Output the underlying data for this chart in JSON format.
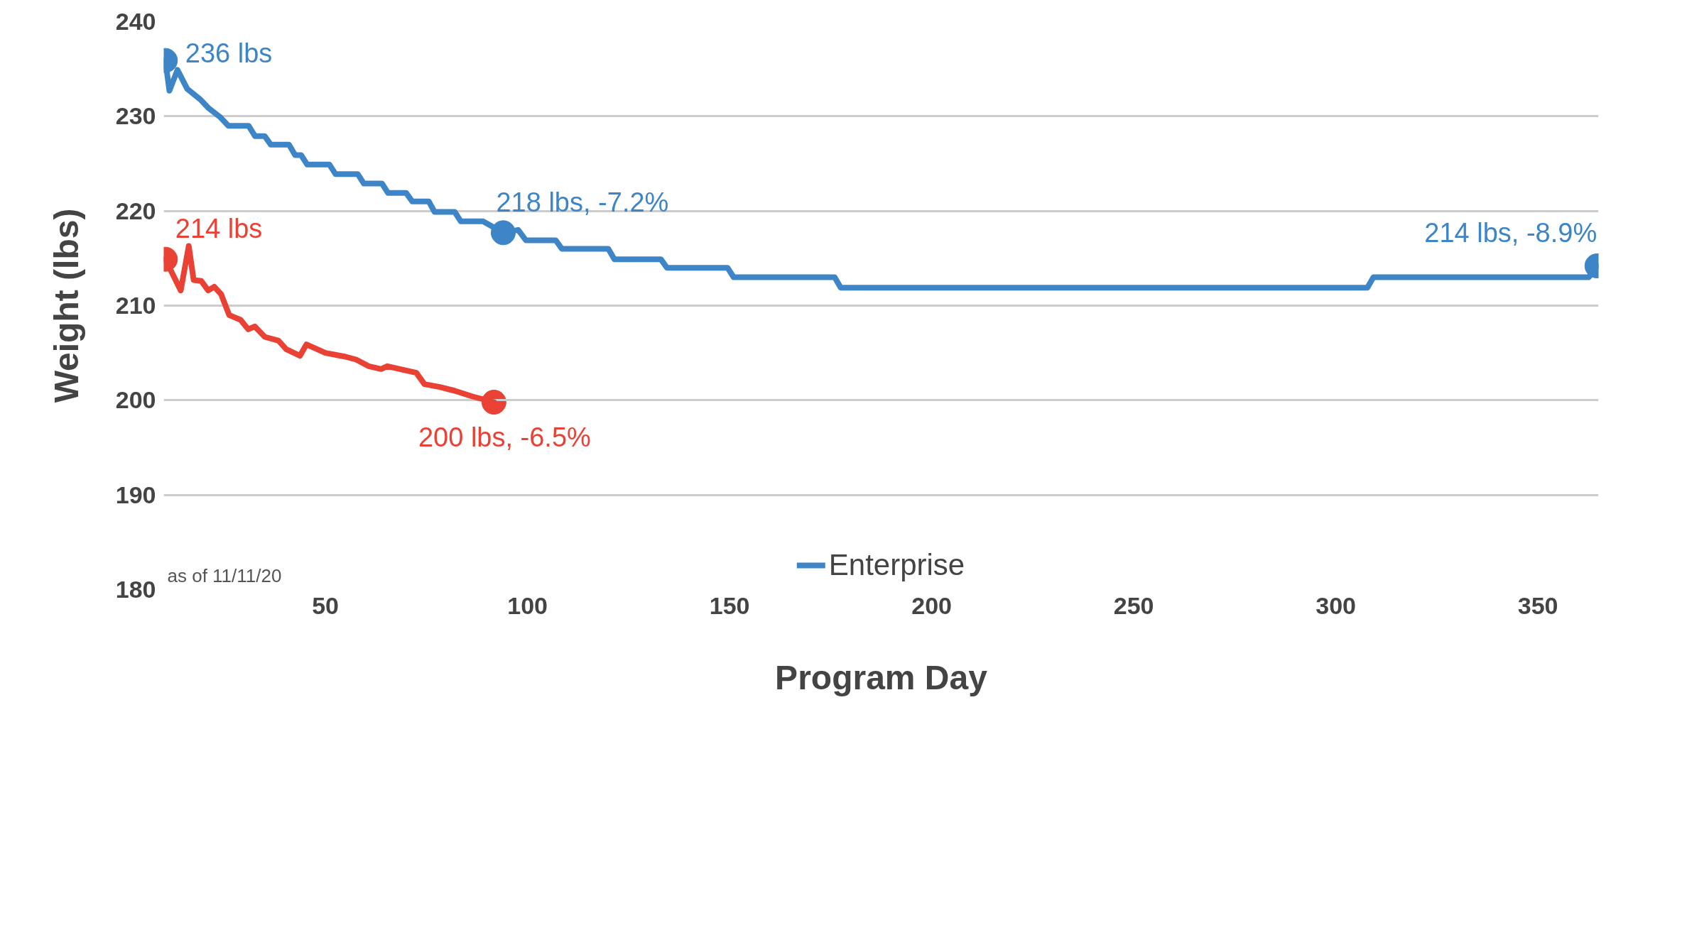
{
  "chart_data": {
    "type": "line",
    "xlabel": "Program Day",
    "ylabel": "Weight (lbs)",
    "xlim": [
      10,
      365
    ],
    "xticks": [
      50,
      100,
      150,
      200,
      250,
      300,
      350
    ],
    "ylim": [
      180,
      240
    ],
    "yticks": [
      180,
      190,
      200,
      210,
      220,
      230,
      240
    ],
    "grid": "y",
    "legend": "bottom",
    "line_style": "solid",
    "series": [
      {
        "name": "Enterprise",
        "color": "#3d85c6",
        "x": [
          10.4,
          11.4,
          13.4,
          15.8,
          19,
          21,
          24,
          26,
          31,
          32.6,
          35,
          36.5,
          41,
          42.5,
          44,
          45.5,
          51,
          52.5,
          58,
          59.5,
          64,
          65.5,
          70,
          71.5,
          75.6,
          77,
          82,
          83.5,
          89,
          94,
          97.7,
          99.6,
          107,
          108.5,
          120,
          121.5,
          133,
          134.5,
          149.5,
          151,
          176,
          177.5,
          307.8,
          309.3,
          362.6,
          364.6
        ],
        "values": [
          235.9,
          232.7,
          234.9,
          232.9,
          231.8,
          230.9,
          229.9,
          229,
          229,
          227.9,
          227.9,
          227,
          227,
          225.9,
          225.9,
          224.9,
          224.9,
          223.9,
          223.9,
          222.9,
          222.9,
          221.9,
          221.9,
          221,
          221,
          219.9,
          219.9,
          218.9,
          218.9,
          217.7,
          218,
          216.9,
          216.9,
          216,
          216,
          214.9,
          214.9,
          214,
          214,
          213,
          213,
          211.9,
          211.9,
          213,
          213,
          214.2
        ]
      },
      {
        "color": "#e94235",
        "x": [
          10.4,
          14.2,
          16.2,
          17.4,
          19.3,
          21,
          22.5,
          24.2,
          26.2,
          29,
          30.9,
          32.5,
          35,
          38.4,
          40.3,
          43.7,
          45.3,
          50,
          55,
          57.6,
          60.7,
          63.8,
          65.3,
          72.5,
          74.5,
          78.3,
          82,
          86.4,
          91.7
        ],
        "values": [
          214.9,
          211.6,
          216.3,
          212.7,
          212.6,
          211.6,
          212,
          211.2,
          209,
          208.5,
          207.5,
          207.8,
          206.7,
          206.3,
          205.4,
          204.7,
          205.9,
          205,
          204.6,
          204.3,
          203.6,
          203.3,
          203.6,
          202.9,
          201.7,
          201.4,
          201,
          200.4,
          199.8
        ]
      }
    ],
    "annotations": [
      {
        "text": "236 lbs",
        "x": 10.4,
        "y": 235.9
      },
      {
        "text": "218 lbs, -7.2%",
        "x": 94,
        "y": 217.7
      },
      {
        "text": "214 lbs, -8.9%",
        "x": 364.6,
        "y": 214.2
      },
      {
        "text": "214 lbs",
        "x": 10.4,
        "y": 214.9
      },
      {
        "text": "200 lbs, -6.5%",
        "x": 91.7,
        "y": 199.8
      },
      "as of 11/11/20"
    ]
  }
}
